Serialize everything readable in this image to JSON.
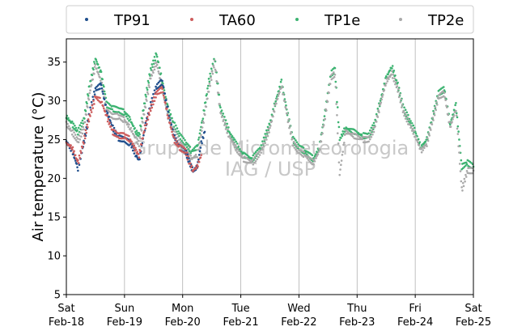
{
  "chart_data": {
    "type": "scatter",
    "ylabel": "Air temperature (°C)",
    "xlabel": "",
    "title": "",
    "ylim": [
      5,
      38
    ],
    "xlim": [
      0,
      7
    ],
    "yticks": [
      5,
      10,
      15,
      20,
      25,
      30,
      35
    ],
    "x_unit": "days since Sat Feb-18 00:00",
    "xticks": [
      {
        "day": "Sat",
        "date": "Feb-18"
      },
      {
        "day": "Sun",
        "date": "Feb-19"
      },
      {
        "day": "Mon",
        "date": "Feb-20"
      },
      {
        "day": "Tue",
        "date": "Feb-21"
      },
      {
        "day": "Wed",
        "date": "Feb-22"
      },
      {
        "day": "Thu",
        "date": "Feb-23"
      },
      {
        "day": "Fri",
        "date": "Feb-24"
      },
      {
        "day": "Sat",
        "date": "Feb-25"
      }
    ],
    "grid": "vertical",
    "legend_position": "top",
    "watermark": [
      "Grupo de Micrometeorologia",
      "IAG / USP"
    ],
    "series": [
      {
        "name": "TP91",
        "color": "#1f4e8c",
        "points": [
          [
            0,
            24.8
          ],
          [
            0.1,
            23.5
          ],
          [
            0.2,
            21.3
          ],
          [
            0.3,
            24.5
          ],
          [
            0.4,
            28.5
          ],
          [
            0.5,
            31.5
          ],
          [
            0.6,
            32.0
          ],
          [
            0.7,
            28.5
          ],
          [
            0.8,
            26.5
          ],
          [
            0.9,
            25.2
          ],
          [
            1.0,
            25.0
          ],
          [
            1.1,
            24.5
          ],
          [
            1.2,
            23.0
          ],
          [
            1.25,
            22.2
          ],
          [
            1.35,
            26.5
          ],
          [
            1.45,
            29.5
          ],
          [
            1.55,
            31.8
          ],
          [
            1.65,
            32.5
          ],
          [
            1.75,
            28.5
          ],
          [
            1.85,
            25.5
          ],
          [
            1.95,
            24.0
          ],
          [
            2.05,
            23.5
          ],
          [
            2.12,
            22.0
          ],
          [
            2.18,
            20.9
          ],
          [
            2.25,
            21.5
          ],
          [
            2.32,
            24.5
          ],
          [
            2.38,
            26.0
          ]
        ]
      },
      {
        "name": "TA60",
        "color": "#cd5c5c",
        "points": [
          [
            0,
            24.5
          ],
          [
            0.1,
            24.0
          ],
          [
            0.2,
            22.0
          ],
          [
            0.3,
            24.8
          ],
          [
            0.4,
            28.0
          ],
          [
            0.5,
            30.5
          ],
          [
            0.6,
            30.0
          ],
          [
            0.7,
            27.8
          ],
          [
            0.8,
            26.0
          ],
          [
            0.9,
            25.5
          ],
          [
            1.0,
            25.5
          ],
          [
            1.1,
            25.0
          ],
          [
            1.2,
            23.5
          ],
          [
            1.25,
            23.0
          ],
          [
            1.35,
            26.5
          ],
          [
            1.45,
            29.0
          ],
          [
            1.55,
            31.0
          ],
          [
            1.65,
            31.5
          ],
          [
            1.75,
            28.0
          ],
          [
            1.85,
            25.0
          ],
          [
            1.95,
            24.0
          ],
          [
            2.05,
            23.5
          ],
          [
            2.12,
            22.0
          ],
          [
            2.18,
            21.0
          ],
          [
            2.25,
            21.5
          ],
          [
            2.32,
            23.0
          ]
        ]
      },
      {
        "name": "TP1e",
        "color": "#3cb371",
        "points": [
          [
            0,
            28.0
          ],
          [
            0.1,
            27.0
          ],
          [
            0.2,
            26.0
          ],
          [
            0.3,
            27.5
          ],
          [
            0.4,
            32.0
          ],
          [
            0.5,
            35.5
          ],
          [
            0.6,
            33.5
          ],
          [
            0.7,
            29.5
          ],
          [
            0.8,
            29.0
          ],
          [
            0.9,
            28.8
          ],
          [
            1.0,
            28.5
          ],
          [
            1.1,
            27.5
          ],
          [
            1.2,
            26.0
          ],
          [
            1.25,
            25.5
          ],
          [
            1.35,
            30.0
          ],
          [
            1.45,
            34.0
          ],
          [
            1.55,
            36.0
          ],
          [
            1.65,
            32.5
          ],
          [
            1.75,
            29.0
          ],
          [
            1.85,
            27.0
          ],
          [
            1.95,
            25.5
          ],
          [
            2.05,
            24.5
          ],
          [
            2.15,
            23.5
          ],
          [
            2.25,
            24.0
          ],
          [
            2.35,
            28.0
          ],
          [
            2.45,
            32.5
          ],
          [
            2.55,
            35.5
          ],
          [
            2.65,
            29.0
          ],
          [
            2.8,
            26.0
          ],
          [
            2.95,
            24.0
          ],
          [
            3.05,
            23.0
          ],
          [
            3.2,
            22.5
          ],
          [
            3.35,
            24.0
          ],
          [
            3.5,
            27.0
          ],
          [
            3.6,
            30.0
          ],
          [
            3.7,
            32.5
          ],
          [
            3.8,
            28.5
          ],
          [
            3.9,
            25.0
          ],
          [
            4.0,
            24.0
          ],
          [
            4.1,
            23.5
          ],
          [
            4.25,
            22.5
          ],
          [
            4.35,
            24.0
          ],
          [
            4.45,
            28.5
          ],
          [
            4.55,
            33.5
          ],
          [
            4.62,
            34.0
          ],
          [
            4.7,
            25.0
          ],
          [
            4.8,
            26.5
          ],
          [
            4.95,
            26.0
          ],
          [
            5.1,
            25.5
          ],
          [
            5.2,
            25.5
          ],
          [
            5.3,
            27.0
          ],
          [
            5.4,
            30.0
          ],
          [
            5.5,
            33.0
          ],
          [
            5.6,
            34.5
          ],
          [
            5.7,
            32.0
          ],
          [
            5.8,
            29.0
          ],
          [
            5.9,
            27.5
          ],
          [
            6.0,
            26.0
          ],
          [
            6.1,
            24.0
          ],
          [
            6.2,
            25.0
          ],
          [
            6.3,
            28.0
          ],
          [
            6.4,
            31.0
          ],
          [
            6.5,
            31.5
          ],
          [
            6.6,
            27.0
          ],
          [
            6.7,
            29.5
          ],
          [
            6.8,
            21.5
          ],
          [
            6.9,
            22.0
          ],
          [
            7.0,
            21.5
          ]
        ]
      },
      {
        "name": "TP2e",
        "color": "#a9a9a9",
        "points": [
          [
            0,
            27.0
          ],
          [
            0.1,
            26.0
          ],
          [
            0.2,
            24.8
          ],
          [
            0.3,
            26.5
          ],
          [
            0.4,
            31.0
          ],
          [
            0.5,
            34.5
          ],
          [
            0.6,
            32.5
          ],
          [
            0.7,
            28.5
          ],
          [
            0.8,
            28.0
          ],
          [
            0.9,
            28.0
          ],
          [
            1.0,
            27.5
          ],
          [
            1.1,
            26.5
          ],
          [
            1.2,
            25.0
          ],
          [
            1.25,
            24.5
          ],
          [
            1.35,
            29.0
          ],
          [
            1.45,
            33.0
          ],
          [
            1.55,
            35.0
          ],
          [
            1.65,
            31.5
          ],
          [
            1.75,
            28.0
          ],
          [
            1.85,
            26.0
          ],
          [
            1.95,
            24.5
          ],
          [
            2.05,
            23.5
          ],
          [
            2.15,
            22.5
          ],
          [
            2.25,
            23.0
          ],
          [
            2.35,
            27.0
          ],
          [
            2.45,
            31.5
          ],
          [
            2.55,
            35.0
          ],
          [
            2.65,
            28.5
          ],
          [
            2.8,
            25.5
          ],
          [
            2.95,
            23.5
          ],
          [
            3.05,
            22.5
          ],
          [
            3.2,
            22.0
          ],
          [
            3.35,
            23.5
          ],
          [
            3.5,
            26.5
          ],
          [
            3.6,
            29.5
          ],
          [
            3.7,
            32.0
          ],
          [
            3.8,
            28.0
          ],
          [
            3.9,
            24.5
          ],
          [
            4.0,
            23.5
          ],
          [
            4.1,
            23.0
          ],
          [
            4.25,
            22.0
          ],
          [
            4.35,
            23.5
          ],
          [
            4.45,
            28.0
          ],
          [
            4.55,
            33.0
          ],
          [
            4.62,
            33.5
          ],
          [
            4.7,
            20.5
          ],
          [
            4.8,
            26.0
          ],
          [
            4.95,
            25.5
          ],
          [
            5.1,
            25.0
          ],
          [
            5.2,
            25.0
          ],
          [
            5.3,
            26.5
          ],
          [
            5.4,
            29.5
          ],
          [
            5.5,
            32.5
          ],
          [
            5.6,
            33.5
          ],
          [
            5.7,
            31.5
          ],
          [
            5.8,
            28.5
          ],
          [
            5.9,
            27.0
          ],
          [
            6.0,
            25.5
          ],
          [
            6.1,
            23.5
          ],
          [
            6.2,
            24.5
          ],
          [
            6.3,
            27.5
          ],
          [
            6.4,
            30.5
          ],
          [
            6.5,
            31.0
          ],
          [
            6.6,
            26.5
          ],
          [
            6.7,
            29.0
          ],
          [
            6.8,
            18.5
          ],
          [
            6.9,
            21.0
          ],
          [
            7.0,
            21.0
          ]
        ]
      }
    ]
  }
}
